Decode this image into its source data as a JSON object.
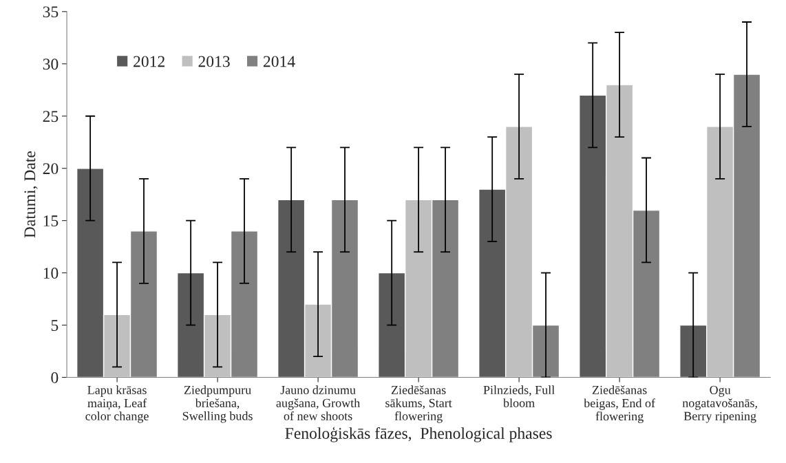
{
  "chart_data": {
    "type": "bar",
    "xlabel": "Fenoloģiskās fāzes,  Phenological phases",
    "ylabel": "Datumi, Date",
    "categories": [
      "Lapu krāsas\nmaiņa, Leaf\ncolor change",
      "Ziedpumpuru\nbriešana,\nSwelling buds",
      "Jauno dzinumu\naugšana, Growth\nof new shoots",
      "Ziedēšanas\nsākums, Start\nflowering",
      "Pilnzieds, Full\nbloom",
      "Ziedēšanas\nbeigas, End of\nflowering",
      "Ogu\nnogatavošanās,\nBerry ripening"
    ],
    "series": [
      {
        "name": "2012",
        "color": "#595959",
        "values": [
          20,
          10,
          17,
          10,
          18,
          27,
          5
        ],
        "errors": [
          5,
          5,
          5,
          5,
          5,
          5,
          5
        ]
      },
      {
        "name": "2013",
        "color": "#bfbfbf",
        "values": [
          6,
          6,
          7,
          17,
          24,
          28,
          24
        ],
        "errors": [
          5,
          5,
          5,
          5,
          5,
          5,
          5
        ]
      },
      {
        "name": "2014",
        "color": "#808080",
        "values": [
          14,
          14,
          17,
          17,
          5,
          16,
          29
        ],
        "errors": [
          5,
          5,
          5,
          5,
          5,
          5,
          5
        ]
      }
    ],
    "ylim": [
      0,
      35
    ],
    "yticks": [
      0,
      5,
      10,
      15,
      20,
      25,
      30,
      35
    ],
    "grid": false,
    "legend": "top left"
  }
}
